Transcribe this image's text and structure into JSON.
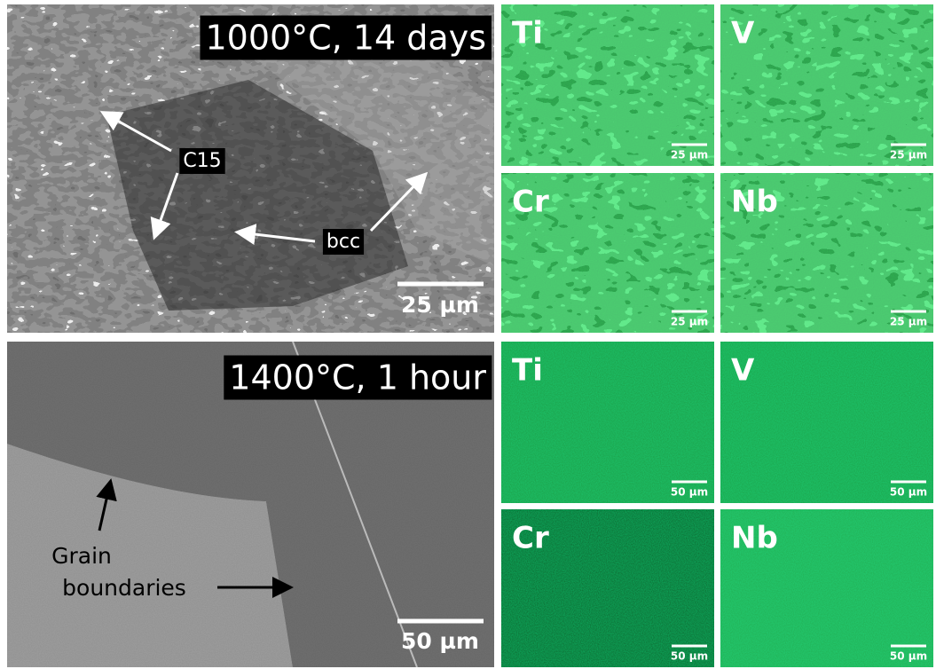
{
  "sem_panels": [
    {
      "label": "1000°C, 14 days",
      "scale_bar": "25 µm",
      "annotations": [
        "C15",
        "bcc"
      ]
    },
    {
      "label": "1400°C, 1 hour",
      "scale_bar": "50 µm",
      "annotations": [
        "Grain",
        "boundaries"
      ]
    }
  ],
  "eds_maps": [
    {
      "element": "Ti",
      "scale_bar": "25 µm"
    },
    {
      "element": "V",
      "scale_bar": "25 µm"
    },
    {
      "element": "Cr",
      "scale_bar": "25 µm"
    },
    {
      "element": "Nb",
      "scale_bar": "25 µm"
    },
    {
      "element": "Ti",
      "scale_bar": "50 µm"
    },
    {
      "element": "V",
      "scale_bar": "50 µm"
    },
    {
      "element": "Cr",
      "scale_bar": "50 µm"
    },
    {
      "element": "Nb",
      "scale_bar": "50 µm"
    }
  ]
}
